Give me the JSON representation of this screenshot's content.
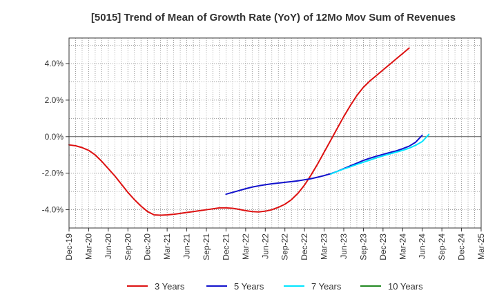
{
  "chart_data": {
    "type": "line",
    "title": "[5015]  Trend of Mean of Growth Rate (YoY) of 12Mo Mov Sum of Revenues",
    "xlabel": "",
    "ylabel": "",
    "x_start": "Dec-19",
    "x_end": "Mar-25",
    "x_tick_step_months": 3,
    "x_tick_labels": [
      "Dec-19",
      "Mar-20",
      "Jun-20",
      "Sep-20",
      "Dec-20",
      "Mar-21",
      "Jun-21",
      "Sep-21",
      "Dec-21",
      "Mar-22",
      "Jun-22",
      "Sep-22",
      "Dec-22",
      "Mar-23",
      "Jun-23",
      "Sep-23",
      "Dec-23",
      "Mar-24",
      "Jun-24",
      "Sep-24",
      "Dec-24",
      "Mar-25"
    ],
    "ylim": [
      -5.0,
      5.4
    ],
    "y_ticks": [
      -4,
      -2,
      0,
      2,
      4
    ],
    "y_tick_labels": [
      "-4.0%",
      "-2.0%",
      "0.0%",
      "2.0%",
      "4.0%"
    ],
    "grid": true,
    "legend_position": "bottom",
    "series": [
      {
        "name": "3 Years",
        "color": "#dd1111",
        "points": [
          [
            0,
            -0.45
          ],
          [
            1,
            -0.5
          ],
          [
            2,
            -0.6
          ],
          [
            3,
            -0.75
          ],
          [
            4,
            -1.0
          ],
          [
            5,
            -1.35
          ],
          [
            6,
            -1.75
          ],
          [
            7,
            -2.15
          ],
          [
            8,
            -2.6
          ],
          [
            9,
            -3.05
          ],
          [
            10,
            -3.45
          ],
          [
            11,
            -3.8
          ],
          [
            12,
            -4.1
          ],
          [
            13,
            -4.28
          ],
          [
            14,
            -4.3
          ],
          [
            15,
            -4.28
          ],
          [
            16,
            -4.25
          ],
          [
            17,
            -4.2
          ],
          [
            18,
            -4.15
          ],
          [
            19,
            -4.1
          ],
          [
            20,
            -4.05
          ],
          [
            21,
            -4.0
          ],
          [
            22,
            -3.95
          ],
          [
            23,
            -3.9
          ],
          [
            24,
            -3.9
          ],
          [
            25,
            -3.92
          ],
          [
            26,
            -3.98
          ],
          [
            27,
            -4.05
          ],
          [
            28,
            -4.1
          ],
          [
            29,
            -4.12
          ],
          [
            30,
            -4.08
          ],
          [
            31,
            -4.0
          ],
          [
            32,
            -3.87
          ],
          [
            33,
            -3.7
          ],
          [
            34,
            -3.45
          ],
          [
            35,
            -3.1
          ],
          [
            36,
            -2.65
          ],
          [
            37,
            -2.1
          ],
          [
            38,
            -1.5
          ],
          [
            39,
            -0.85
          ],
          [
            40,
            -0.2
          ],
          [
            41,
            0.45
          ],
          [
            42,
            1.1
          ],
          [
            43,
            1.7
          ],
          [
            44,
            2.25
          ],
          [
            45,
            2.7
          ],
          [
            46,
            3.05
          ],
          [
            47,
            3.35
          ],
          [
            48,
            3.65
          ],
          [
            49,
            3.95
          ],
          [
            50,
            4.25
          ],
          [
            51,
            4.55
          ],
          [
            52,
            4.85
          ]
        ]
      },
      {
        "name": "5 Years",
        "color": "#1111cc",
        "points": [
          [
            24,
            -3.15
          ],
          [
            25,
            -3.05
          ],
          [
            26,
            -2.95
          ],
          [
            27,
            -2.85
          ],
          [
            28,
            -2.76
          ],
          [
            29,
            -2.69
          ],
          [
            30,
            -2.63
          ],
          [
            31,
            -2.58
          ],
          [
            32,
            -2.54
          ],
          [
            33,
            -2.5
          ],
          [
            34,
            -2.46
          ],
          [
            35,
            -2.42
          ],
          [
            36,
            -2.36
          ],
          [
            37,
            -2.3
          ],
          [
            38,
            -2.22
          ],
          [
            39,
            -2.13
          ],
          [
            40,
            -2.03
          ],
          [
            41,
            -1.9
          ],
          [
            42,
            -1.75
          ],
          [
            43,
            -1.6
          ],
          [
            44,
            -1.45
          ],
          [
            45,
            -1.3
          ],
          [
            46,
            -1.18
          ],
          [
            47,
            -1.07
          ],
          [
            48,
            -0.97
          ],
          [
            49,
            -0.87
          ],
          [
            50,
            -0.78
          ],
          [
            51,
            -0.66
          ],
          [
            52,
            -0.52
          ],
          [
            53,
            -0.3
          ],
          [
            54,
            0.08
          ]
        ]
      },
      {
        "name": "7 Years",
        "color": "#00e5ff",
        "points": [
          [
            40,
            -2.05
          ],
          [
            41,
            -1.9
          ],
          [
            42,
            -1.77
          ],
          [
            43,
            -1.65
          ],
          [
            44,
            -1.52
          ],
          [
            45,
            -1.4
          ],
          [
            46,
            -1.28
          ],
          [
            47,
            -1.16
          ],
          [
            48,
            -1.05
          ],
          [
            49,
            -0.95
          ],
          [
            50,
            -0.85
          ],
          [
            51,
            -0.75
          ],
          [
            52,
            -0.63
          ],
          [
            53,
            -0.47
          ],
          [
            54,
            -0.27
          ],
          [
            55,
            0.12
          ]
        ]
      },
      {
        "name": "10 Years",
        "color": "#228822",
        "points": []
      }
    ]
  }
}
